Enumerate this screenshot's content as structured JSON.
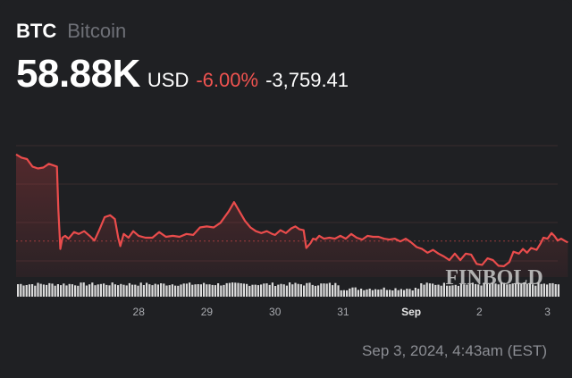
{
  "header": {
    "ticker": "BTC",
    "name": "Bitcoin",
    "price": "58.88K",
    "currency": "USD",
    "change_percent": "-6.00%",
    "change_value": "-3,759.41"
  },
  "timestamp": "Sep 3, 2024, 4:43am (EST)",
  "watermark": "FINBOLD",
  "colors": {
    "background": "#1f2023",
    "line": "#ea4c4c",
    "negative": "#ef5350",
    "volume": "#dcdcdc",
    "grid": "#3a2c2e"
  },
  "chart_data": {
    "type": "line",
    "title": "",
    "xlabel": "",
    "ylabel": "",
    "x_ticks": [
      {
        "label": "28",
        "t": 1.0
      },
      {
        "label": "29",
        "t": 2.0
      },
      {
        "label": "30",
        "t": 3.0
      },
      {
        "label": "31",
        "t": 4.0
      },
      {
        "label": "Sep",
        "t": 5.0,
        "bold": true
      },
      {
        "label": "2",
        "t": 6.0
      },
      {
        "label": "3",
        "t": 7.0
      }
    ],
    "x_range": [
      -0.8,
      7.15
    ],
    "ylim": [
      57400,
      64800
    ],
    "reference_line": 59320,
    "series": [
      {
        "points": [
          [
            -0.8,
            63950
          ],
          [
            -0.72,
            63780
          ],
          [
            -0.64,
            63700
          ],
          [
            -0.56,
            63300
          ],
          [
            -0.48,
            63200
          ],
          [
            -0.4,
            63250
          ],
          [
            -0.32,
            63450
          ],
          [
            -0.2,
            63300
          ],
          [
            -0.18,
            61000
          ],
          [
            -0.15,
            58900
          ],
          [
            -0.12,
            59500
          ],
          [
            -0.08,
            59600
          ],
          [
            -0.03,
            59450
          ],
          [
            0.05,
            59800
          ],
          [
            0.12,
            59700
          ],
          [
            0.2,
            59850
          ],
          [
            0.28,
            59600
          ],
          [
            0.35,
            59350
          ],
          [
            0.42,
            59900
          ],
          [
            0.5,
            60600
          ],
          [
            0.58,
            60700
          ],
          [
            0.65,
            60500
          ],
          [
            0.7,
            59500
          ],
          [
            0.73,
            59050
          ],
          [
            0.78,
            59700
          ],
          [
            0.85,
            59500
          ],
          [
            0.92,
            59850
          ],
          [
            1.0,
            59600
          ],
          [
            1.1,
            59500
          ],
          [
            1.2,
            59500
          ],
          [
            1.3,
            59800
          ],
          [
            1.4,
            59550
          ],
          [
            1.5,
            59600
          ],
          [
            1.6,
            59550
          ],
          [
            1.7,
            59700
          ],
          [
            1.8,
            59650
          ],
          [
            1.9,
            60050
          ],
          [
            2.0,
            60100
          ],
          [
            2.1,
            60050
          ],
          [
            2.2,
            60300
          ],
          [
            2.32,
            60900
          ],
          [
            2.4,
            61400
          ],
          [
            2.48,
            60900
          ],
          [
            2.56,
            60400
          ],
          [
            2.64,
            60050
          ],
          [
            2.72,
            59850
          ],
          [
            2.8,
            59750
          ],
          [
            2.88,
            59850
          ],
          [
            2.96,
            59700
          ],
          [
            3.0,
            59650
          ],
          [
            3.08,
            59900
          ],
          [
            3.16,
            59750
          ],
          [
            3.24,
            60000
          ],
          [
            3.3,
            60100
          ],
          [
            3.36,
            59950
          ],
          [
            3.42,
            59900
          ],
          [
            3.46,
            58950
          ],
          [
            3.52,
            59200
          ],
          [
            3.56,
            59450
          ],
          [
            3.6,
            59400
          ],
          [
            3.65,
            59600
          ],
          [
            3.72,
            59450
          ],
          [
            3.8,
            59500
          ],
          [
            3.88,
            59450
          ],
          [
            3.96,
            59600
          ],
          [
            4.04,
            59450
          ],
          [
            4.12,
            59700
          ],
          [
            4.2,
            59500
          ],
          [
            4.28,
            59400
          ],
          [
            4.36,
            59600
          ],
          [
            4.44,
            59550
          ],
          [
            4.52,
            59550
          ],
          [
            4.6,
            59450
          ],
          [
            4.68,
            59400
          ],
          [
            4.76,
            59450
          ],
          [
            4.84,
            59300
          ],
          [
            4.92,
            59450
          ],
          [
            5.0,
            59250
          ],
          [
            5.08,
            59000
          ],
          [
            5.16,
            58900
          ],
          [
            5.24,
            58700
          ],
          [
            5.32,
            58850
          ],
          [
            5.4,
            58650
          ],
          [
            5.48,
            58500
          ],
          [
            5.56,
            58300
          ],
          [
            5.64,
            58650
          ],
          [
            5.72,
            58300
          ],
          [
            5.8,
            58650
          ],
          [
            5.88,
            58600
          ],
          [
            5.96,
            58100
          ],
          [
            6.04,
            58050
          ],
          [
            6.12,
            58400
          ],
          [
            6.2,
            58300
          ],
          [
            6.28,
            58000
          ],
          [
            6.36,
            57980
          ],
          [
            6.44,
            58200
          ],
          [
            6.5,
            58750
          ],
          [
            6.58,
            58650
          ],
          [
            6.64,
            58900
          ],
          [
            6.7,
            58700
          ],
          [
            6.76,
            58950
          ],
          [
            6.84,
            58850
          ],
          [
            6.9,
            59200
          ],
          [
            6.94,
            59500
          ],
          [
            7.0,
            59450
          ],
          [
            7.06,
            59750
          ],
          [
            7.1,
            59600
          ],
          [
            7.15,
            59350
          ],
          [
            7.2,
            59450
          ],
          [
            7.26,
            59320
          ],
          [
            7.3,
            59250
          ]
        ]
      }
    ]
  }
}
